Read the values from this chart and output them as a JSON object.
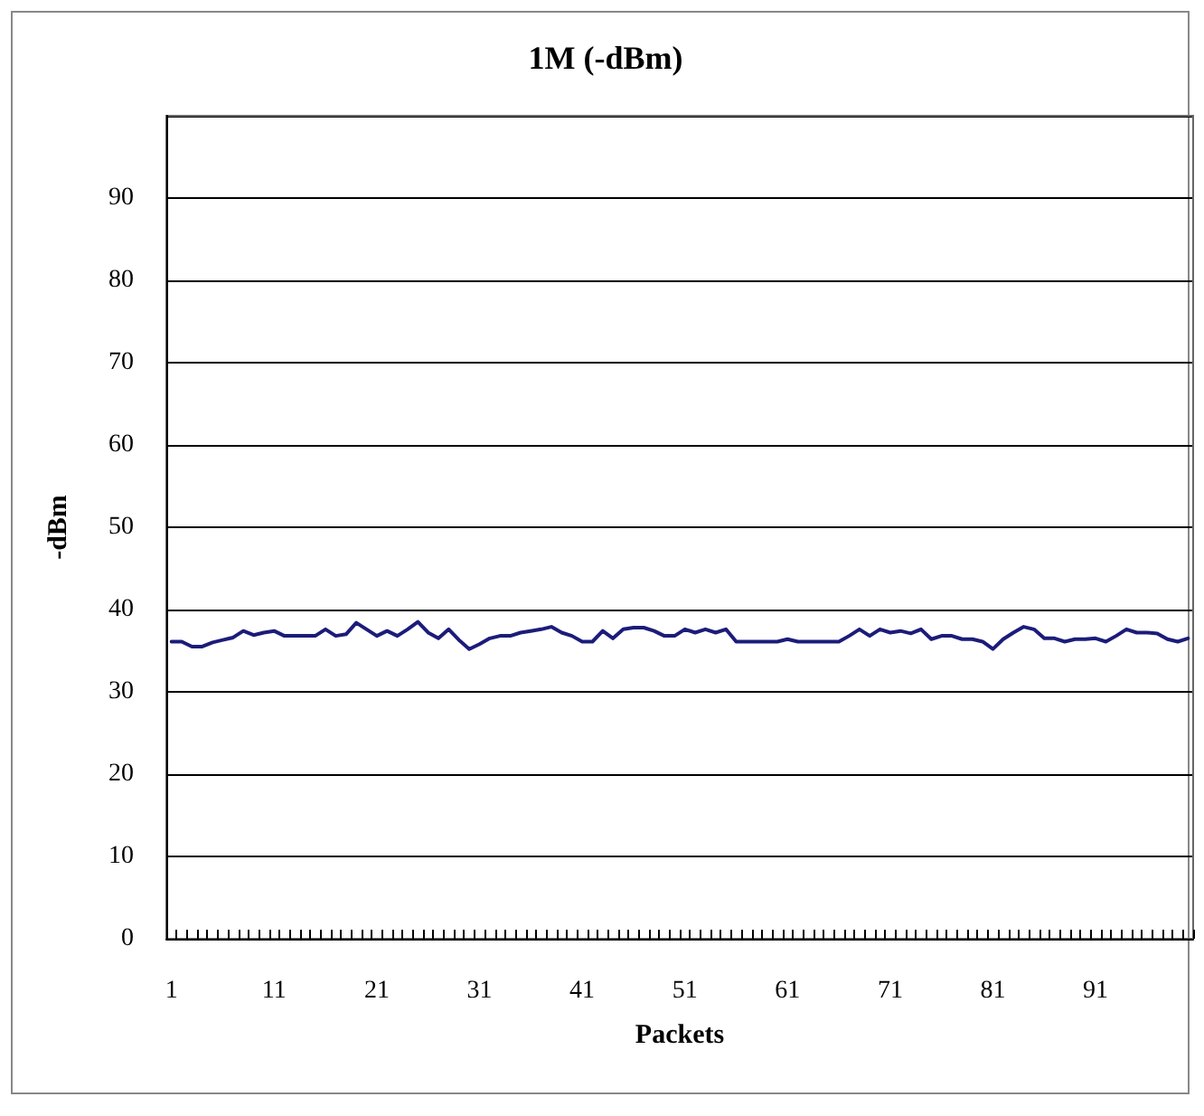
{
  "chart_data": {
    "type": "line",
    "title": "1M (-dBm)",
    "xlabel": "Packets",
    "ylabel": "-dBm",
    "categories": [
      "1",
      null,
      null,
      null,
      null,
      null,
      null,
      null,
      null,
      null,
      "11",
      null,
      null,
      null,
      null,
      null,
      null,
      null,
      null,
      null,
      "21",
      null,
      null,
      null,
      null,
      null,
      null,
      null,
      null,
      null,
      "31",
      null,
      null,
      null,
      null,
      null,
      null,
      null,
      null,
      null,
      "41",
      null,
      null,
      null,
      null,
      null,
      null,
      null,
      null,
      null,
      "51",
      null,
      null,
      null,
      null,
      null,
      null,
      null,
      null,
      null,
      "61",
      null,
      null,
      null,
      null,
      null,
      null,
      null,
      null,
      null,
      "71",
      null,
      null,
      null,
      null,
      null,
      null,
      null,
      null,
      null,
      "81",
      null,
      null,
      null,
      null,
      null,
      null,
      null,
      null,
      null,
      "91",
      null,
      null,
      null,
      null,
      null,
      null,
      null,
      null,
      null
    ],
    "series": [
      {
        "color": "#1c1c7a",
        "values": [
          36.1,
          36.1,
          35.5,
          35.5,
          36.0,
          36.3,
          36.6,
          37.4,
          36.9,
          37.2,
          37.4,
          36.8,
          36.8,
          36.8,
          36.8,
          37.6,
          36.8,
          37.0,
          38.4,
          37.6,
          36.8,
          37.4,
          36.8,
          37.6,
          38.5,
          37.2,
          36.5,
          37.6,
          36.3,
          35.2,
          35.8,
          36.5,
          36.8,
          36.8,
          37.2,
          37.4,
          37.6,
          37.9,
          37.2,
          36.8,
          36.1,
          36.1,
          37.4,
          36.5,
          37.6,
          37.8,
          37.8,
          37.4,
          36.8,
          36.8,
          37.6,
          37.2,
          37.6,
          37.2,
          37.6,
          36.1,
          36.1,
          36.1,
          36.1,
          36.1,
          36.4,
          36.1,
          36.1,
          36.1,
          36.1,
          36.1,
          36.8,
          37.6,
          36.8,
          37.6,
          37.2,
          37.4,
          37.1,
          37.6,
          36.4,
          36.8,
          36.8,
          36.4,
          36.4,
          36.1,
          35.2,
          36.4,
          37.2,
          37.9,
          37.6,
          36.5,
          36.5,
          36.1,
          36.4,
          36.4,
          36.5,
          36.1,
          36.8,
          37.6,
          37.2,
          37.2,
          37.1,
          36.4,
          36.1,
          36.5
        ]
      }
    ],
    "ylim": [
      0,
      100
    ],
    "yticks": [
      0,
      10,
      20,
      30,
      40,
      50,
      60,
      70,
      80,
      90,
      {
        "value": 100,
        "label": null
      }
    ],
    "grid": "y",
    "marker": "none",
    "line_style": "solid"
  }
}
